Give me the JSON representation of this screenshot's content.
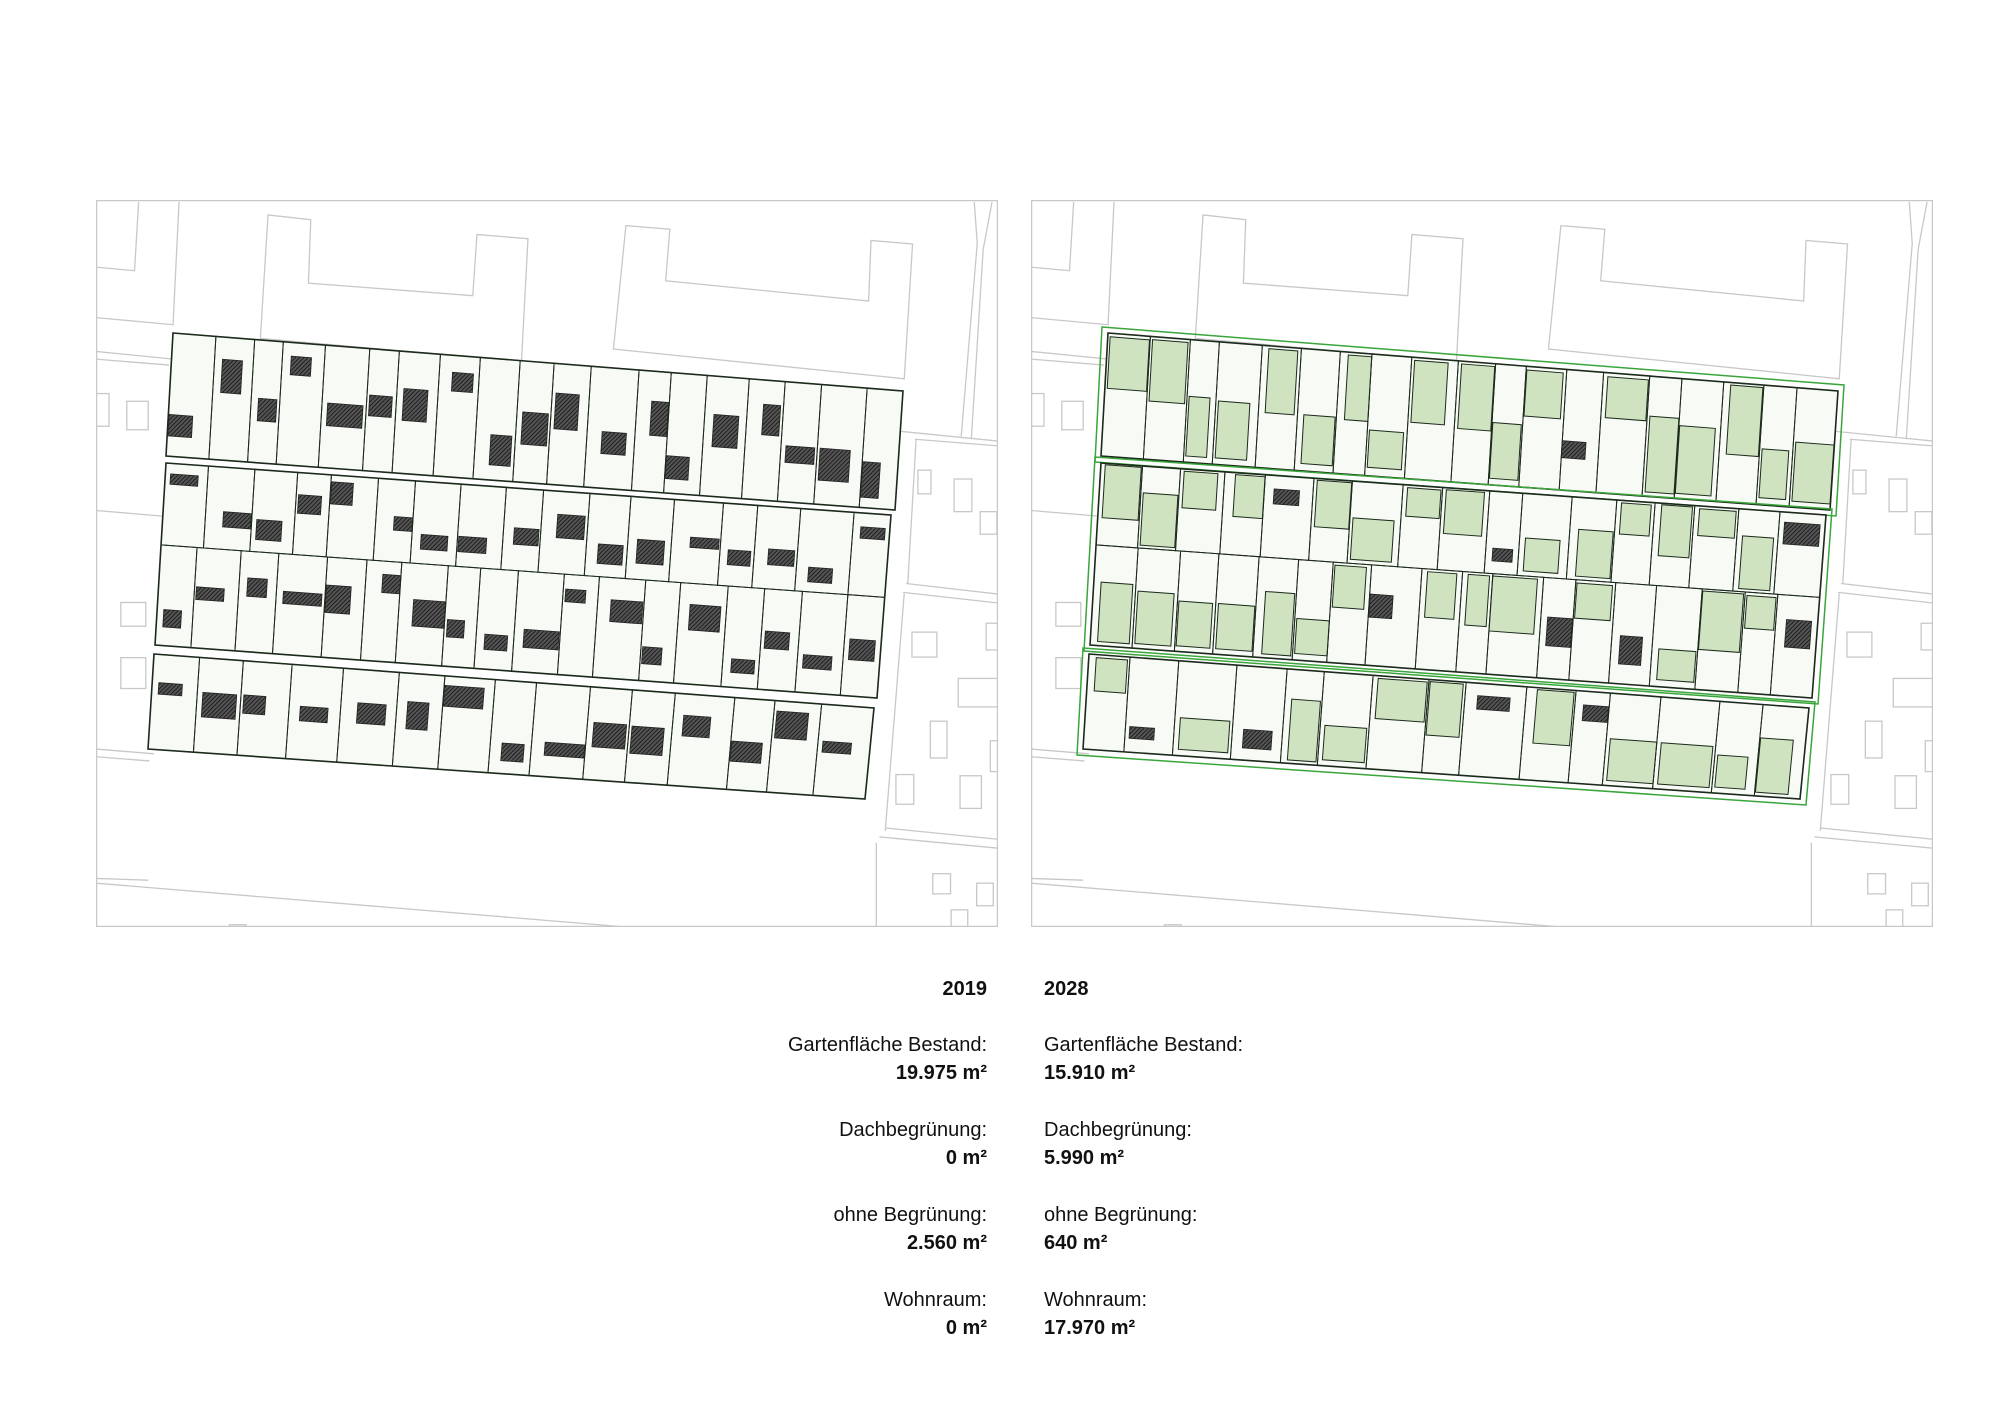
{
  "colors": {
    "context_line": "#c8c8c8",
    "parcel_fill": "#f7faf5",
    "parcel_line": "#1c2a1c",
    "building_hatch": "#3a3a3a",
    "green_roof": "#cfe3c0",
    "block_outline_green": "#3aa53a"
  },
  "panels": [
    {
      "year": "2019",
      "stats": [
        {
          "label": "Gartenfläche Bestand:",
          "value": "19.975 m²"
        },
        {
          "label": "Dachbegrünung:",
          "value": "0 m²"
        },
        {
          "label": "ohne Begrünung:",
          "value": "2.560 m²"
        },
        {
          "label": "Wohnraum:",
          "value": "0 m²"
        }
      ]
    },
    {
      "year": "2028",
      "stats": [
        {
          "label": "Gartenfläche Bestand:",
          "value": "15.910 m²"
        },
        {
          "label": "Dachbegrünung:",
          "value": "5.990 m²"
        },
        {
          "label": "ohne Begrünung:",
          "value": "640 m²"
        },
        {
          "label": "Wohnraum:",
          "value": "17.970 m²"
        }
      ]
    }
  ]
}
